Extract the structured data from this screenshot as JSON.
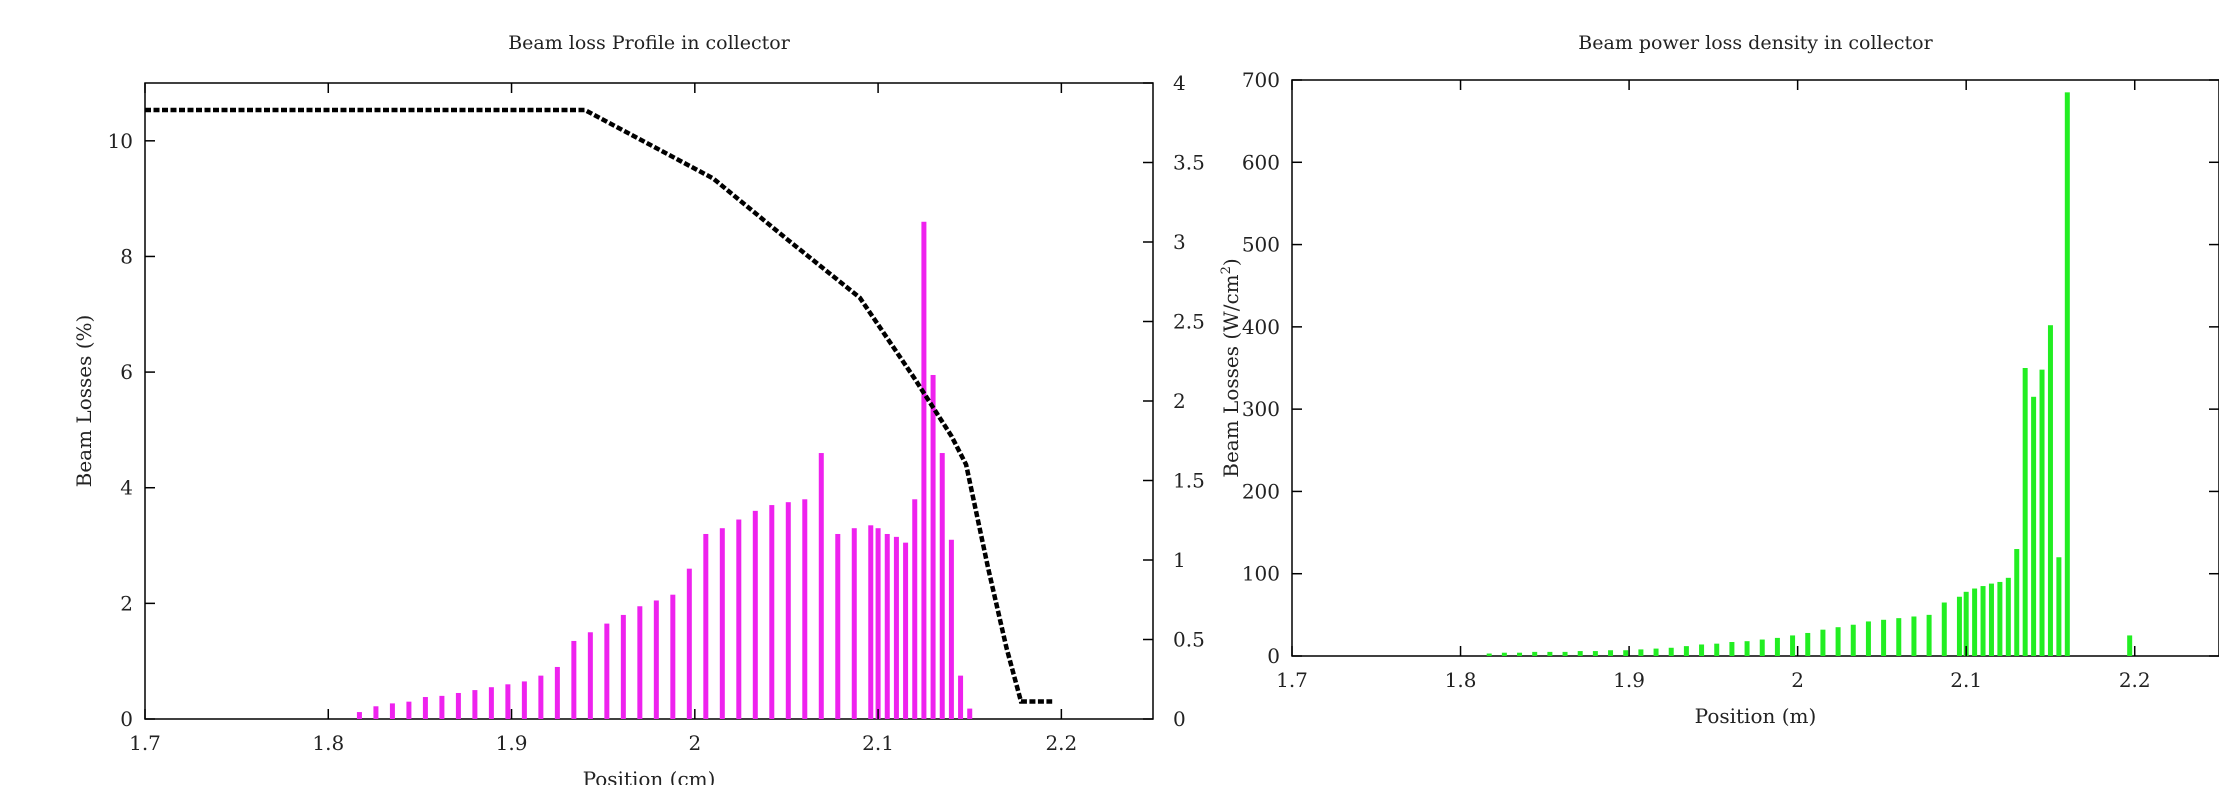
{
  "chart_data": [
    {
      "type": "bar",
      "title": "Beam loss Profile in collector",
      "xlabel": "Position (cm)",
      "ylabel": "Beam Losses (%)",
      "xlim": [
        1.7,
        2.25
      ],
      "ylim": [
        0,
        11
      ],
      "y2lim": [
        0,
        4
      ],
      "xticks": [
        "1.7",
        "1.8",
        "1.9",
        "2",
        "2.1",
        "2.2"
      ],
      "yticks": [
        "0",
        "2",
        "4",
        "6",
        "8",
        "10"
      ],
      "y2ticks": [
        "0",
        "0.5",
        "1",
        "1.5",
        "2",
        "2.5",
        "3",
        "3.5",
        "4"
      ],
      "bar_color": "#ee22ee",
      "line_color": "#000000",
      "series": [
        {
          "kind": "bar",
          "x": [
            1.817,
            1.826,
            1.835,
            1.844,
            1.853,
            1.862,
            1.871,
            1.88,
            1.889,
            1.898,
            1.907,
            1.916,
            1.925,
            1.934,
            1.943,
            1.952,
            1.961,
            1.97,
            1.979,
            1.988,
            1.997,
            2.006,
            2.015,
            2.024,
            2.033,
            2.042,
            2.051,
            2.06,
            2.069,
            2.078,
            2.087,
            2.096,
            2.1,
            2.105,
            2.11,
            2.115,
            2.12,
            2.125,
            2.13,
            2.135,
            2.14,
            2.145,
            2.15,
            2.155,
            2.16,
            2.165,
            2.17,
            2.175,
            2.197
          ],
          "values": [
            0.12,
            0.22,
            0.27,
            0.3,
            0.38,
            0.4,
            0.45,
            0.5,
            0.55,
            0.6,
            0.65,
            0.75,
            0.9,
            1.35,
            1.5,
            1.65,
            1.8,
            1.95,
            2.05,
            2.15,
            2.6,
            3.2,
            3.3,
            3.45,
            3.6,
            3.7,
            3.75,
            3.8,
            4.6,
            3.2,
            3.3,
            3.35,
            3.3,
            3.2,
            3.15,
            3.05,
            3.8,
            8.6,
            5.95,
            4.6,
            3.1,
            0.75,
            0.18,
            0,
            0,
            0,
            0,
            0,
            0
          ]
        },
        {
          "kind": "line",
          "axis": "y2",
          "style": "dashed",
          "x": [
            1.7,
            1.94,
            2.01,
            2.05,
            2.09,
            2.12,
            2.14,
            2.148,
            2.16,
            2.17,
            2.178,
            2.195
          ],
          "values": [
            3.83,
            3.83,
            3.4,
            3.02,
            2.65,
            2.14,
            1.78,
            1.6,
            0.95,
            0.45,
            0.11,
            0.11
          ]
        }
      ]
    },
    {
      "type": "bar",
      "title": "Beam power loss density in collector",
      "xlabel": "Position (m)",
      "ylabel": "Beam Losses (W/cm",
      "ylabel_sup": "2",
      "ylabel_end": ")",
      "xlim": [
        1.7,
        2.25
      ],
      "ylim": [
        0,
        700
      ],
      "xticks": [
        "1.7",
        "1.8",
        "1.9",
        "2",
        "2.1",
        "2.2"
      ],
      "yticks": [
        "0",
        "100",
        "200",
        "300",
        "400",
        "500",
        "600",
        "700"
      ],
      "bar_color": "#22ee22",
      "series": [
        {
          "kind": "bar",
          "x": [
            1.817,
            1.826,
            1.835,
            1.844,
            1.853,
            1.862,
            1.871,
            1.88,
            1.889,
            1.898,
            1.907,
            1.916,
            1.925,
            1.934,
            1.943,
            1.952,
            1.961,
            1.97,
            1.979,
            1.988,
            1.997,
            2.006,
            2.015,
            2.024,
            2.033,
            2.042,
            2.051,
            2.06,
            2.069,
            2.078,
            2.087,
            2.096,
            2.1,
            2.105,
            2.11,
            2.115,
            2.12,
            2.125,
            2.13,
            2.135,
            2.14,
            2.145,
            2.15,
            2.155,
            2.16,
            2.165,
            2.17,
            2.175,
            2.197
          ],
          "values": [
            3,
            4,
            4,
            5,
            5,
            5,
            6,
            6,
            7,
            7,
            8,
            9,
            10,
            12,
            14,
            15,
            17,
            18,
            20,
            22,
            25,
            28,
            32,
            35,
            38,
            42,
            44,
            46,
            48,
            50,
            65,
            72,
            78,
            82,
            85,
            88,
            90,
            95,
            130,
            350,
            315,
            348,
            402,
            120,
            685,
            0,
            0,
            0,
            25
          ]
        }
      ]
    }
  ]
}
